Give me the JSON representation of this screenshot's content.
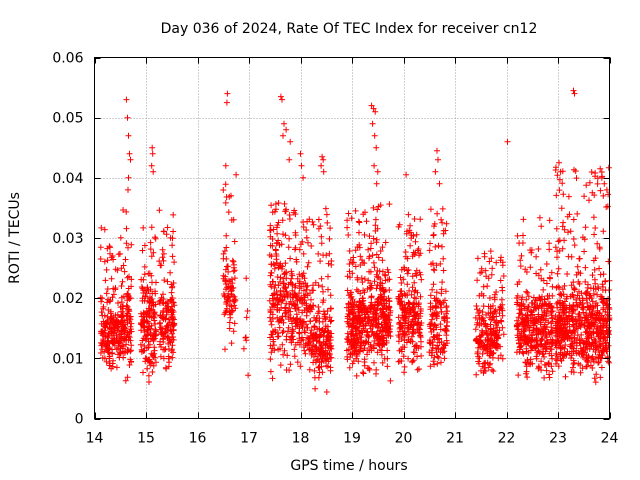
{
  "chart_data": {
    "type": "scatter",
    "title": "Day 036 of 2024, Rate Of TEC Index for receiver cn12",
    "xlabel": "GPS time / hours",
    "ylabel": "ROTI / TECUs",
    "xlim": [
      14,
      24
    ],
    "ylim": [
      0,
      0.06
    ],
    "xticks": [
      14,
      15,
      16,
      17,
      18,
      19,
      20,
      21,
      22,
      23,
      24
    ],
    "yticks": [
      0,
      0.01,
      0.02,
      0.03,
      0.04,
      0.05,
      0.06
    ],
    "ytick_labels": [
      "0",
      "0.01",
      "0.02",
      "0.03",
      "0.04",
      "0.05",
      "0.06"
    ],
    "grid": true,
    "marker": "+",
    "color": "#ff0000",
    "series": [
      {
        "name": "ROTI",
        "clusters": [
          {
            "x_range": [
              14.12,
              14.52
            ],
            "count": 200,
            "y_min": 0.007,
            "y_max": 0.032,
            "y_mode": 0.014
          },
          {
            "x_range": [
              14.52,
              14.72
            ],
            "count": 110,
            "y_min": 0.006,
            "y_max": 0.035,
            "y_mode": 0.015
          },
          {
            "x_range": [
              14.9,
              15.2
            ],
            "count": 160,
            "y_min": 0.005,
            "y_max": 0.032,
            "y_mode": 0.015
          },
          {
            "x_range": [
              15.25,
              15.55
            ],
            "count": 150,
            "y_min": 0.007,
            "y_max": 0.035,
            "y_mode": 0.016
          },
          {
            "x_range": [
              16.5,
              16.75
            ],
            "count": 90,
            "y_min": 0.009,
            "y_max": 0.04,
            "y_mode": 0.02
          },
          {
            "x_range": [
              16.9,
              17.0
            ],
            "count": 8,
            "y_min": 0.007,
            "y_max": 0.027,
            "y_mode": 0.016
          },
          {
            "x_range": [
              17.4,
              17.95
            ],
            "count": 260,
            "y_min": 0.006,
            "y_max": 0.036,
            "y_mode": 0.018
          },
          {
            "x_range": [
              17.95,
              18.25
            ],
            "count": 120,
            "y_min": 0.006,
            "y_max": 0.036,
            "y_mode": 0.016
          },
          {
            "x_range": [
              18.25,
              18.6
            ],
            "count": 180,
            "y_min": 0.004,
            "y_max": 0.035,
            "y_mode": 0.012
          },
          {
            "x_range": [
              18.9,
              19.3
            ],
            "count": 250,
            "y_min": 0.006,
            "y_max": 0.035,
            "y_mode": 0.015
          },
          {
            "x_range": [
              19.3,
              19.75
            ],
            "count": 280,
            "y_min": 0.006,
            "y_max": 0.036,
            "y_mode": 0.016
          },
          {
            "x_range": [
              19.9,
              20.35
            ],
            "count": 230,
            "y_min": 0.007,
            "y_max": 0.034,
            "y_mode": 0.016
          },
          {
            "x_range": [
              20.5,
              20.85
            ],
            "count": 150,
            "y_min": 0.007,
            "y_max": 0.035,
            "y_mode": 0.015
          },
          {
            "x_range": [
              21.4,
              21.85
            ],
            "count": 200,
            "y_min": 0.006,
            "y_max": 0.028,
            "y_mode": 0.013
          },
          {
            "x_range": [
              21.85,
              21.95
            ],
            "count": 25,
            "y_min": 0.009,
            "y_max": 0.028,
            "y_mode": 0.018
          },
          {
            "x_range": [
              22.2,
              22.9
            ],
            "count": 350,
            "y_min": 0.005,
            "y_max": 0.034,
            "y_mode": 0.014
          },
          {
            "x_range": [
              22.95,
              24.0
            ],
            "count": 650,
            "y_min": 0.006,
            "y_max": 0.042,
            "y_mode": 0.015
          }
        ],
        "notable_points": [
          [
            14.62,
            0.053
          ],
          [
            14.64,
            0.05
          ],
          [
            14.66,
            0.047
          ],
          [
            14.68,
            0.044
          ],
          [
            14.66,
            0.04
          ],
          [
            14.65,
            0.038
          ],
          [
            14.7,
            0.043
          ],
          [
            15.12,
            0.045
          ],
          [
            15.13,
            0.044
          ],
          [
            15.11,
            0.042
          ],
          [
            15.14,
            0.041
          ],
          [
            16.58,
            0.054
          ],
          [
            16.57,
            0.0525
          ],
          [
            16.55,
            0.042
          ],
          [
            16.75,
            0.0405
          ],
          [
            17.62,
            0.0535
          ],
          [
            17.64,
            0.053
          ],
          [
            17.68,
            0.049
          ],
          [
            17.72,
            0.048
          ],
          [
            17.66,
            0.047
          ],
          [
            17.8,
            0.046
          ],
          [
            17.78,
            0.043
          ],
          [
            18.0,
            0.044
          ],
          [
            18.02,
            0.042
          ],
          [
            18.05,
            0.04
          ],
          [
            18.42,
            0.0435
          ],
          [
            18.44,
            0.043
          ],
          [
            18.4,
            0.042
          ],
          [
            18.45,
            0.041
          ],
          [
            19.38,
            0.052
          ],
          [
            19.42,
            0.0515
          ],
          [
            19.45,
            0.051
          ],
          [
            19.4,
            0.049
          ],
          [
            19.44,
            0.047
          ],
          [
            19.47,
            0.045
          ],
          [
            19.43,
            0.042
          ],
          [
            19.5,
            0.041
          ],
          [
            19.48,
            0.039
          ],
          [
            20.05,
            0.0405
          ],
          [
            20.65,
            0.0445
          ],
          [
            20.67,
            0.043
          ],
          [
            20.62,
            0.041
          ],
          [
            20.7,
            0.039
          ],
          [
            22.02,
            0.046
          ],
          [
            23.02,
            0.0425
          ],
          [
            23.05,
            0.041
          ],
          [
            23.3,
            0.0545
          ],
          [
            23.32,
            0.054
          ],
          [
            23.82,
            0.0415
          ],
          [
            23.85,
            0.04
          ],
          [
            23.9,
            0.039
          ],
          [
            23.88,
            0.037
          ],
          [
            23.95,
            0.038
          ]
        ]
      }
    ]
  }
}
